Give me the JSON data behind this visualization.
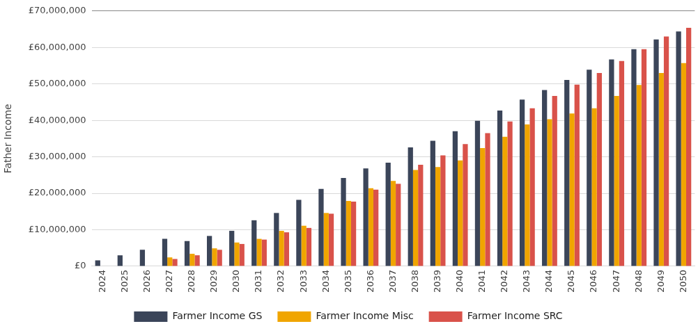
{
  "chart_data": {
    "type": "bar",
    "ylabel": "Father Income",
    "categories": [
      "2024",
      "2025",
      "2026",
      "2027",
      "2028",
      "2029",
      "2030",
      "2031",
      "2032",
      "2033",
      "2034",
      "2035",
      "2036",
      "2037",
      "2038",
      "2039",
      "2040",
      "2041",
      "2042",
      "2043",
      "2044",
      "2045",
      "2046",
      "2047",
      "2048",
      "2049",
      "2050"
    ],
    "series": [
      {
        "name": "Farmer Income GS",
        "color": "#3b4559",
        "values": [
          1600000,
          3000000,
          4500000,
          7500000,
          6900000,
          8300000,
          9700000,
          12600000,
          14600000,
          18200000,
          21200000,
          24200000,
          26800000,
          28400000,
          32600000,
          34400000,
          37000000,
          39900000,
          42700000,
          45700000,
          48300000,
          51100000,
          53900000,
          56700000,
          59500000,
          62200000,
          64400000
        ]
      },
      {
        "name": "Farmer Income Misc",
        "color": "#f0a500",
        "values": [
          null,
          null,
          null,
          2400000,
          3400000,
          4900000,
          6500000,
          7500000,
          9700000,
          11100000,
          14600000,
          17900000,
          21400000,
          23400000,
          26400000,
          27200000,
          29000000,
          32400000,
          35500000,
          38900000,
          40300000,
          41900000,
          43300000,
          46700000,
          49700000,
          53000000,
          55700000
        ]
      },
      {
        "name": "Farmer Income SRC",
        "color": "#d9524a",
        "values": [
          null,
          null,
          null,
          2000000,
          3000000,
          4500000,
          6100000,
          7300000,
          9300000,
          10500000,
          14400000,
          17700000,
          21000000,
          22600000,
          27800000,
          30400000,
          33500000,
          36500000,
          39700000,
          43300000,
          46700000,
          49800000,
          53000000,
          56300000,
          59500000,
          63000000,
          65400000
        ]
      }
    ],
    "ylim": [
      0,
      70000000
    ],
    "yticks": [
      {
        "value": 0,
        "label": "£0"
      },
      {
        "value": 10000000,
        "label": "£10,000,000"
      },
      {
        "value": 20000000,
        "label": "£20,000,000"
      },
      {
        "value": 30000000,
        "label": "£30,000,000"
      },
      {
        "value": 40000000,
        "label": "£40,000,000"
      },
      {
        "value": 50000000,
        "label": "£50,000,000"
      },
      {
        "value": 60000000,
        "label": "£60,000,000"
      },
      {
        "value": 70000000,
        "label": "£70,000,000"
      }
    ],
    "grid": "y",
    "legend": "bottom"
  }
}
